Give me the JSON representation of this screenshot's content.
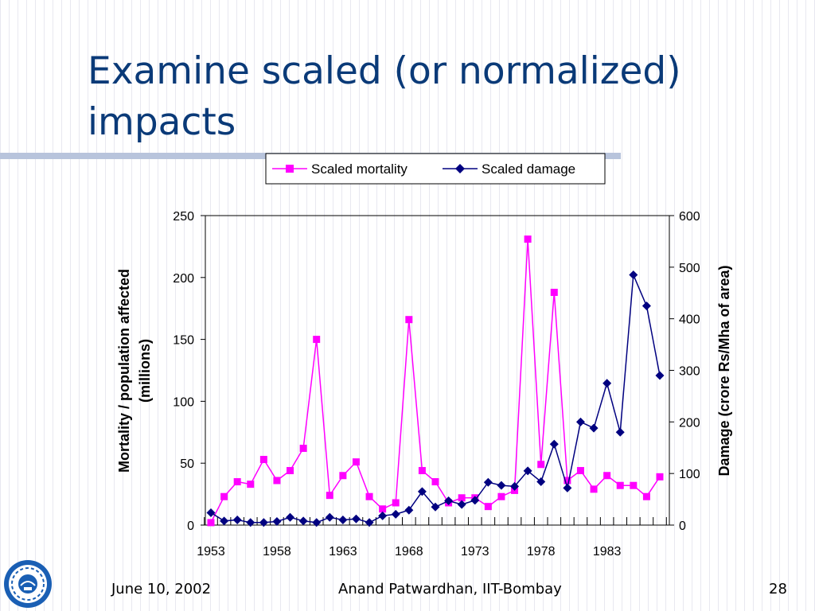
{
  "slide": {
    "title": "Examine scaled (or normalized) impacts",
    "footer_date": "June 10, 2002",
    "footer_author": "Anand Patwardhan, IIT-Bombay",
    "footer_page": "28",
    "title_color": "#0a3a78",
    "logo_icon": "iit-bombay-seal-icon"
  },
  "chart_data": {
    "type": "line",
    "x": [
      1953,
      1954,
      1955,
      1956,
      1957,
      1958,
      1959,
      1960,
      1961,
      1962,
      1963,
      1964,
      1965,
      1966,
      1967,
      1968,
      1969,
      1970,
      1971,
      1972,
      1973,
      1974,
      1975,
      1976,
      1977,
      1978,
      1979,
      1980,
      1981,
      1982,
      1983,
      1984,
      1985,
      1986,
      1987
    ],
    "x_tick_labels": [
      "1953",
      "1958",
      "1963",
      "1968",
      "1973",
      "1978",
      "1983"
    ],
    "series": [
      {
        "name": "Scaled mortality",
        "axis": "left",
        "color": "#ff00ff",
        "marker": "square",
        "values": [
          2,
          23,
          35,
          33,
          53,
          36,
          44,
          62,
          150,
          24,
          40,
          51,
          23,
          13,
          18,
          166,
          44,
          35,
          18,
          22,
          22,
          15,
          23,
          28,
          231,
          49,
          188,
          36,
          44,
          29,
          40,
          32,
          32,
          23,
          39
        ]
      },
      {
        "name": "Scaled damage",
        "axis": "right",
        "color": "#000080",
        "marker": "diamond",
        "values": [
          24,
          8,
          10,
          5,
          5,
          7,
          15,
          8,
          5,
          15,
          10,
          12,
          5,
          18,
          21,
          29,
          65,
          35,
          47,
          40,
          48,
          83,
          77,
          75,
          105,
          84,
          157,
          72,
          200,
          188,
          275,
          180,
          485,
          425,
          290
        ]
      }
    ],
    "y_left": {
      "label": "Mortality / population affected (millions)",
      "label_line1": "Mortality / population affected",
      "label_line2": "(millions)",
      "min": 0,
      "max": 250,
      "ticks": [
        0,
        50,
        100,
        150,
        200,
        250
      ]
    },
    "y_right": {
      "label": "Damage (crore Rs/Mha of area)",
      "min": 0,
      "max": 600,
      "ticks": [
        0,
        100,
        200,
        300,
        400,
        500,
        600
      ]
    },
    "legend_position": "top",
    "grid": false
  }
}
